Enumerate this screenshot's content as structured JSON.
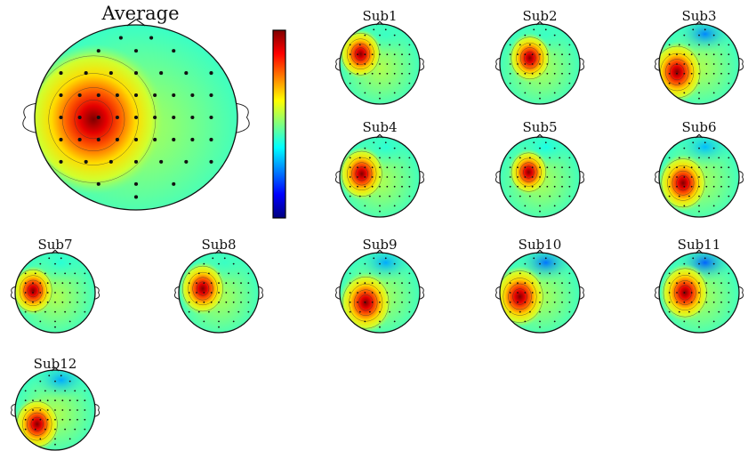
{
  "figure": {
    "average": {
      "label": "Average",
      "focus": {
        "x": -0.42,
        "y": 0.02,
        "strength": 1.0,
        "spread": 0.34
      },
      "frontal_dip": 0.0
    },
    "colorbar": {
      "colors": [
        "#7f0000",
        "#ff0000",
        "#ff7f00",
        "#ffff00",
        "#7fff7f",
        "#00ffff",
        "#007fff",
        "#0000ff",
        "#00007f"
      ]
    },
    "subjects": [
      {
        "label": "Sub1",
        "focus": {
          "x": -0.48,
          "y": -0.25,
          "strength": 1.0,
          "spread": 0.26
        },
        "frontal_dip": 0.05
      },
      {
        "label": "Sub2",
        "focus": {
          "x": -0.25,
          "y": -0.15,
          "strength": 1.0,
          "spread": 0.26
        },
        "frontal_dip": 0.05
      },
      {
        "label": "Sub3",
        "focus": {
          "x": -0.55,
          "y": 0.2,
          "strength": 1.0,
          "spread": 0.32
        },
        "frontal_dip": 0.55
      },
      {
        "label": "Sub4",
        "focus": {
          "x": -0.45,
          "y": -0.08,
          "strength": 1.0,
          "spread": 0.28
        },
        "frontal_dip": 0.1
      },
      {
        "label": "Sub5",
        "focus": {
          "x": -0.28,
          "y": -0.12,
          "strength": 1.0,
          "spread": 0.24
        },
        "frontal_dip": 0.15
      },
      {
        "label": "Sub6",
        "focus": {
          "x": -0.4,
          "y": 0.15,
          "strength": 1.0,
          "spread": 0.3
        },
        "frontal_dip": 0.4
      },
      {
        "label": "Sub7",
        "focus": {
          "x": -0.55,
          "y": -0.05,
          "strength": 1.0,
          "spread": 0.26
        },
        "frontal_dip": 0.1
      },
      {
        "label": "Sub8",
        "focus": {
          "x": -0.4,
          "y": -0.1,
          "strength": 1.0,
          "spread": 0.28
        },
        "frontal_dip": 0.05
      },
      {
        "label": "Sub9",
        "focus": {
          "x": -0.35,
          "y": 0.25,
          "strength": 1.0,
          "spread": 0.32
        },
        "frontal_dip": 0.45
      },
      {
        "label": "Sub10",
        "focus": {
          "x": -0.5,
          "y": 0.1,
          "strength": 1.0,
          "spread": 0.32
        },
        "frontal_dip": 0.6
      },
      {
        "label": "Sub11",
        "focus": {
          "x": -0.35,
          "y": 0.0,
          "strength": 1.0,
          "spread": 0.3
        },
        "frontal_dip": 0.65
      },
      {
        "label": "Sub12",
        "focus": {
          "x": -0.45,
          "y": 0.35,
          "strength": 1.0,
          "spread": 0.28
        },
        "frontal_dip": 0.45
      }
    ]
  }
}
